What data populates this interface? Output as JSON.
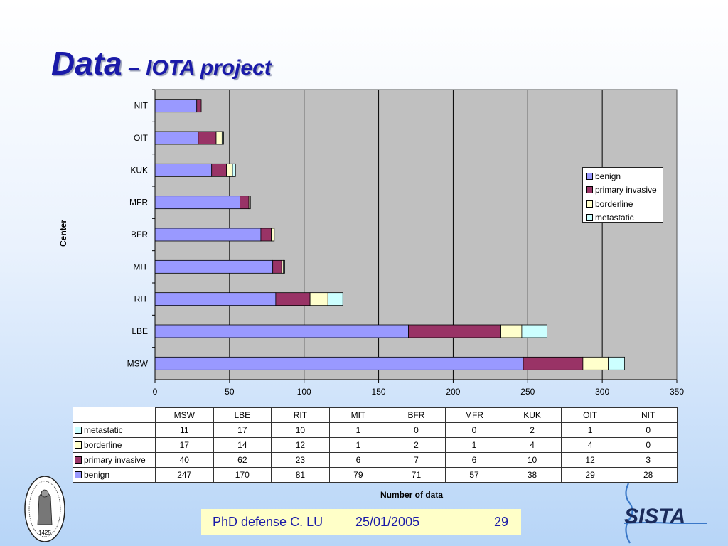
{
  "slide": {
    "title_main": "Data",
    "title_sub": " – IOTA project",
    "footer": {
      "text": "PhD defense  C. LU",
      "date": "25/01/2005",
      "page": "29"
    },
    "logo_text": "SISTA",
    "seal_year": "1425"
  },
  "chart_data": {
    "type": "bar",
    "orientation": "horizontal",
    "stacked": true,
    "categories": [
      "MSW",
      "LBE",
      "RIT",
      "MIT",
      "BFR",
      "MFR",
      "KUK",
      "OIT",
      "NIT"
    ],
    "series": [
      {
        "name": "benign",
        "values": [
          247,
          170,
          81,
          79,
          71,
          57,
          38,
          29,
          28
        ],
        "color": "#9999ff"
      },
      {
        "name": "primary invasive",
        "values": [
          40,
          62,
          23,
          6,
          7,
          6,
          10,
          12,
          3
        ],
        "color": "#993366"
      },
      {
        "name": "borderline",
        "values": [
          17,
          14,
          12,
          1,
          2,
          1,
          4,
          4,
          0
        ],
        "color": "#ffffcc"
      },
      {
        "name": "metastatic",
        "values": [
          11,
          17,
          10,
          1,
          0,
          0,
          2,
          1,
          0
        ],
        "color": "#ccffff"
      }
    ],
    "xlabel": "Number of data",
    "ylabel": "Center",
    "xlim": [
      0,
      350
    ],
    "xticks": [
      0,
      50,
      100,
      150,
      200,
      250,
      300,
      350
    ],
    "grid": "vertical",
    "plot_background": "#c0c0c0",
    "legend_position": "right",
    "data_table": {
      "columns": [
        "MSW",
        "LBE",
        "RIT",
        "MIT",
        "BFR",
        "MFR",
        "KUK",
        "OIT",
        "NIT"
      ],
      "row_order": [
        "metastatic",
        "borderline",
        "primary invasive",
        "benign"
      ]
    }
  }
}
